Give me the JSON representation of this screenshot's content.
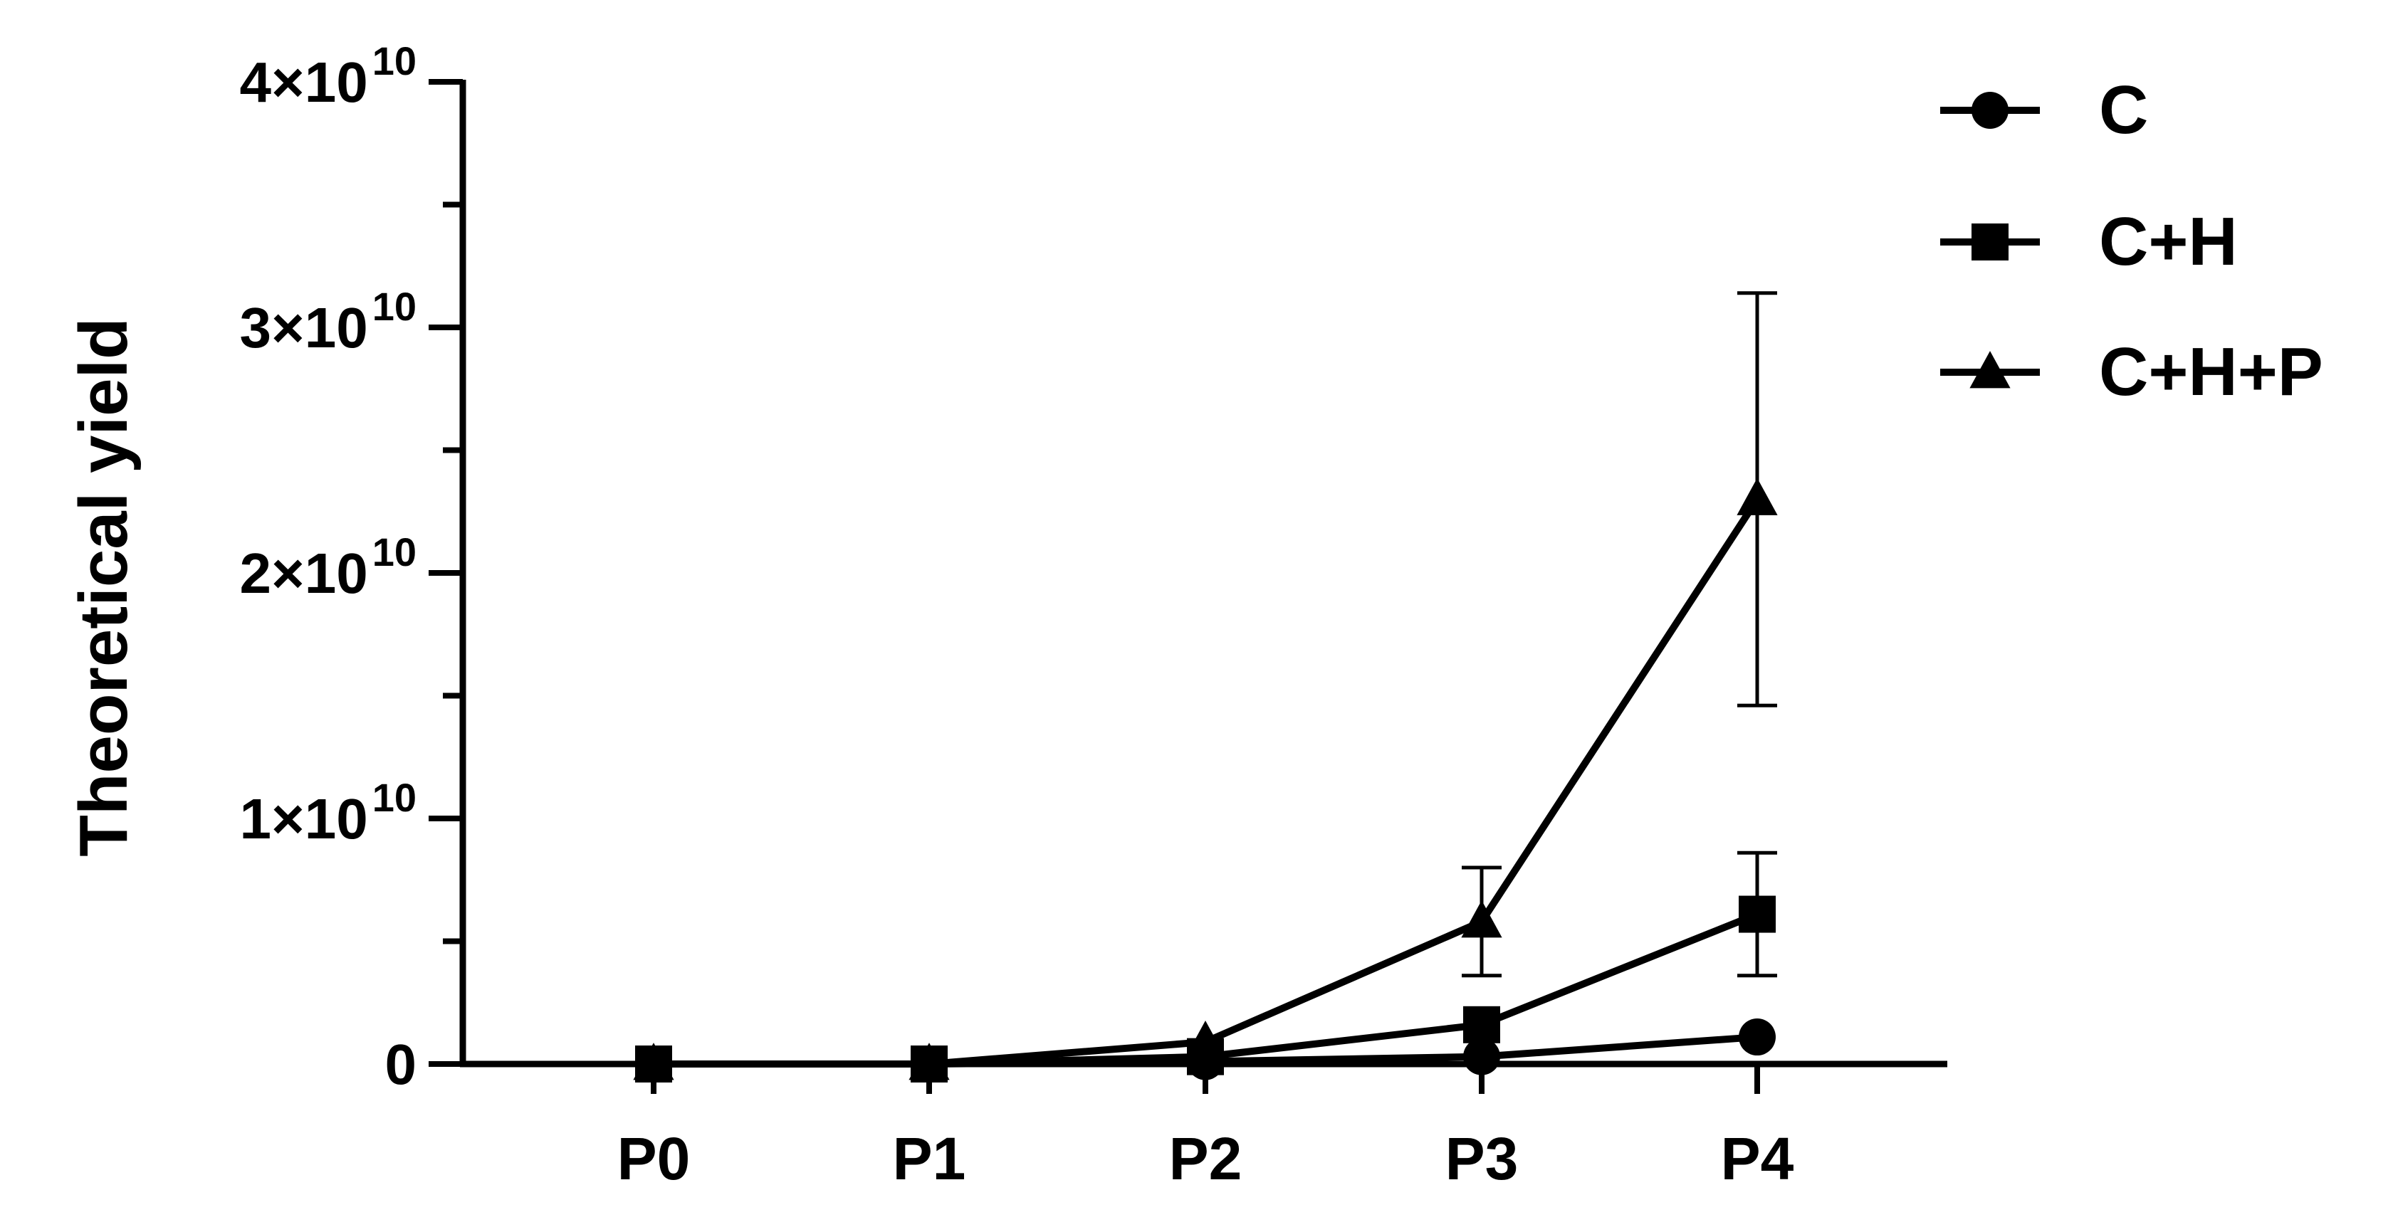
{
  "chart_data": {
    "type": "line",
    "title": "",
    "xlabel": "",
    "ylabel": "Theoretical yield",
    "categories": [
      "P0",
      "P1",
      "P2",
      "P3",
      "P4"
    ],
    "y_tick_labels": [
      {
        "value": 0,
        "text": "0"
      },
      {
        "value": 10000000000,
        "text": "1×10",
        "exp": "10"
      },
      {
        "value": 20000000000,
        "text": "2×10",
        "exp": "10"
      },
      {
        "value": 30000000000,
        "text": "3×10",
        "exp": "10"
      },
      {
        "value": 40000000000,
        "text": "4×10",
        "exp": "10"
      }
    ],
    "ylim": [
      0,
      40000000000
    ],
    "grid": false,
    "legend_position": "top-right",
    "series": [
      {
        "name": "C",
        "marker": "circle",
        "values": [
          0,
          0,
          100000000,
          300000000,
          1100000000
        ],
        "error": [
          0,
          0,
          0,
          0,
          0
        ]
      },
      {
        "name": "C+H",
        "marker": "square",
        "values": [
          0,
          0,
          300000000,
          1600000000,
          6100000000
        ],
        "error": [
          0,
          0,
          0,
          0,
          2500000000
        ]
      },
      {
        "name": "C+H+P",
        "marker": "triangle",
        "values": [
          0,
          0,
          900000000,
          5800000000,
          23000000000
        ],
        "error": [
          0,
          0,
          0,
          2200000000,
          8400000000
        ]
      }
    ],
    "color": "#000000"
  }
}
